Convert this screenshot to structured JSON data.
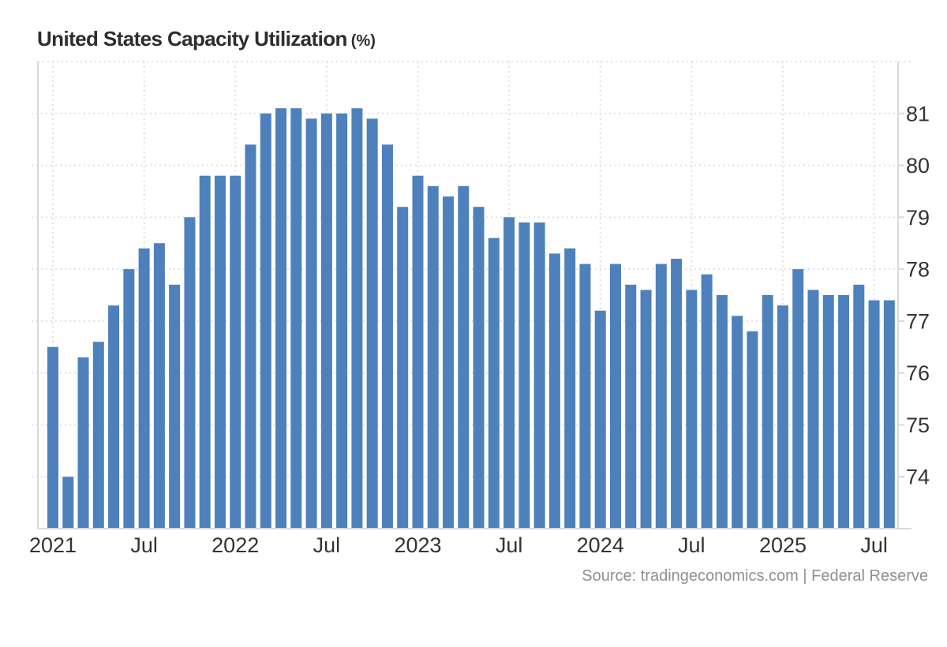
{
  "header": {
    "title": "United States Capacity Utilization",
    "title_suffix": "(%)"
  },
  "footer": {
    "source": "Source: tradingeconomics.com | Federal Reserve"
  },
  "colors": {
    "bar": "#4e81bc",
    "grid": "#e1e1e1",
    "axis": "#d9d9d9",
    "tick_label": "#333333",
    "title": "#2d2d2d",
    "source": "#8f8f8f",
    "background": "#ffffff"
  },
  "chart_data": {
    "type": "bar",
    "title": "United States Capacity Utilization (%)",
    "series_name": "Capacity Utilization",
    "unit": "%",
    "grid": "dotted",
    "legend": "none",
    "ylim": [
      73,
      82
    ],
    "y_ticks": [
      74,
      75,
      76,
      77,
      78,
      79,
      80,
      81
    ],
    "x_tick_labels": [
      {
        "index": 0,
        "label": "2021"
      },
      {
        "index": 6,
        "label": "Jul"
      },
      {
        "index": 12,
        "label": "2022"
      },
      {
        "index": 18,
        "label": "Jul"
      },
      {
        "index": 24,
        "label": "2023"
      },
      {
        "index": 30,
        "label": "Jul"
      },
      {
        "index": 36,
        "label": "2024"
      },
      {
        "index": 42,
        "label": "Jul"
      },
      {
        "index": 48,
        "label": "2025"
      },
      {
        "index": 54,
        "label": "Jul"
      }
    ],
    "categories": [
      "Jan 2021",
      "Feb 2021",
      "Mar 2021",
      "Apr 2021",
      "May 2021",
      "Jun 2021",
      "Jul 2021",
      "Aug 2021",
      "Sep 2021",
      "Oct 2021",
      "Nov 2021",
      "Dec 2021",
      "Jan 2022",
      "Feb 2022",
      "Mar 2022",
      "Apr 2022",
      "May 2022",
      "Jun 2022",
      "Jul 2022",
      "Aug 2022",
      "Sep 2022",
      "Oct 2022",
      "Nov 2022",
      "Dec 2022",
      "Jan 2023",
      "Feb 2023",
      "Mar 2023",
      "Apr 2023",
      "May 2023",
      "Jun 2023",
      "Jul 2023",
      "Aug 2023",
      "Sep 2023",
      "Oct 2023",
      "Nov 2023",
      "Dec 2023",
      "Jan 2024",
      "Feb 2024",
      "Mar 2024",
      "Apr 2024",
      "May 2024",
      "Jun 2024",
      "Jul 2024",
      "Aug 2024",
      "Sep 2024",
      "Oct 2024",
      "Nov 2024",
      "Dec 2024",
      "Jan 2025",
      "Feb 2025",
      "Mar 2025",
      "Apr 2025",
      "May 2025",
      "Jun 2025",
      "Jul 2025",
      "Aug 2025"
    ],
    "values": [
      76.5,
      74.0,
      76.3,
      76.6,
      77.3,
      78.0,
      78.4,
      78.5,
      77.7,
      79.0,
      79.8,
      79.8,
      79.8,
      80.4,
      81.0,
      81.1,
      81.1,
      80.9,
      81.0,
      81.0,
      81.1,
      80.9,
      80.4,
      79.2,
      79.8,
      79.6,
      79.4,
      79.6,
      79.2,
      78.6,
      79.0,
      78.9,
      78.9,
      78.3,
      78.4,
      78.1,
      77.2,
      78.1,
      77.7,
      77.6,
      78.1,
      78.2,
      77.6,
      77.9,
      77.5,
      77.1,
      76.8,
      77.5,
      77.3,
      78.0,
      77.6,
      77.5,
      77.5,
      77.7,
      77.4,
      77.4
    ]
  }
}
